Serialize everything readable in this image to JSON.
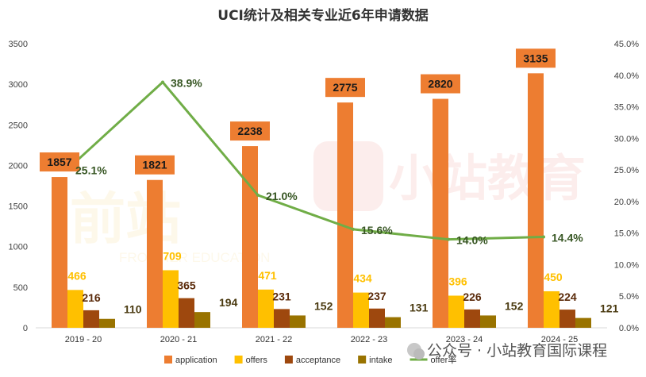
{
  "chart_data": {
    "type": "bar",
    "title": "UCI统计及相关专业近6年申请数据",
    "categories": [
      "2019 - 20",
      "2020 - 21",
      "2021 - 22",
      "2022 - 23",
      "2023 - 24",
      "2024 - 25"
    ],
    "series": [
      {
        "name": "application",
        "type": "bar",
        "axis": "left",
        "color": "#ED7D31",
        "values": [
          1857,
          1821,
          2238,
          2775,
          2820,
          3135
        ]
      },
      {
        "name": "offers",
        "type": "bar",
        "axis": "left",
        "color": "#FFC000",
        "values": [
          466,
          709,
          471,
          434,
          396,
          450
        ]
      },
      {
        "name": "acceptance",
        "type": "bar",
        "axis": "left",
        "color": "#9E480E",
        "values": [
          216,
          365,
          231,
          237,
          226,
          224
        ]
      },
      {
        "name": "intake",
        "type": "bar",
        "axis": "left",
        "color": "#997300",
        "values": [
          110,
          194,
          152,
          131,
          152,
          121
        ]
      },
      {
        "name": "offer率",
        "type": "line",
        "axis": "right",
        "color": "#70AD47",
        "values": [
          25.1,
          38.9,
          21.0,
          15.6,
          14.0,
          14.4
        ],
        "labels": [
          "25.1%",
          "38.9%",
          "21.0%",
          "15.6%",
          "14.0%",
          "14.4%"
        ]
      }
    ],
    "ylim": [
      0,
      3500
    ],
    "y_ticks": [
      "0",
      "500",
      "1000",
      "1500",
      "2000",
      "2500",
      "3000",
      "3500"
    ],
    "y2lim": [
      0,
      45
    ],
    "y2_ticks": [
      "0.0%",
      "5.0%",
      "10.0%",
      "15.0%",
      "20.0%",
      "25.0%",
      "30.0%",
      "35.0%",
      "40.0%",
      "45.0%"
    ],
    "xlabel": "",
    "ylabel": "",
    "grid": false,
    "legend_position": "bottom"
  },
  "watermarks": {
    "center_logo_text": "小站教育",
    "footer_text": "公众号 · 小站教育国际课程",
    "left_logo_text": "前站",
    "left_small_text": "FRONTIER EDUCATION"
  }
}
